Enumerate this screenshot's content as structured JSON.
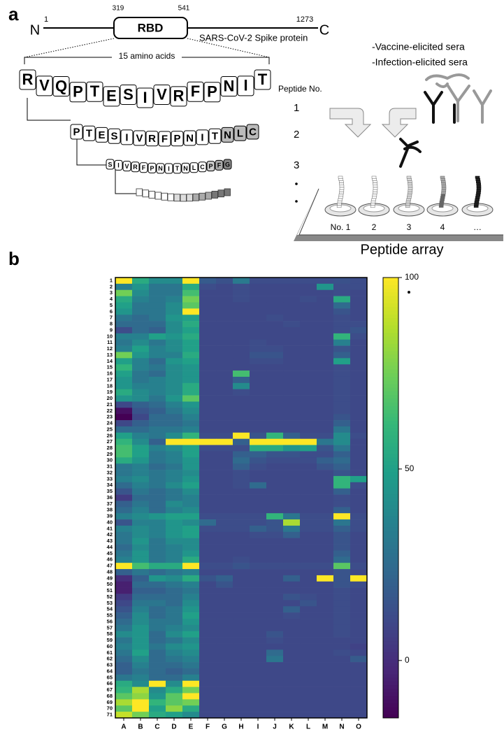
{
  "panel_labels": [
    "a",
    "b"
  ],
  "diagram": {
    "n_term": "N",
    "c_term": "C",
    "start": 1,
    "end": 1273,
    "rbd_start": 319,
    "rbd_end": 541,
    "rbd": "RBD",
    "protein": "SARS-CoV-2 Spike protein",
    "span": "15 amino acids",
    "peptides": [
      [
        "R",
        "V",
        "Q",
        "P",
        "T",
        "E",
        "S",
        "I",
        "V",
        "R",
        "F",
        "P",
        "N",
        "I",
        "T"
      ],
      [
        "P",
        "T",
        "E",
        "S",
        "I",
        "V",
        "R",
        "F",
        "P",
        "N",
        "I",
        "T",
        "N",
        "L",
        "C"
      ],
      [
        "S",
        "I",
        "V",
        "R",
        "F",
        "P",
        "N",
        "I",
        "T",
        "N",
        "L",
        "C",
        "P",
        "F",
        "G"
      ]
    ],
    "peptide_no": "Peptide No.",
    "peptide_numbers": [
      "1",
      "2",
      "3"
    ],
    "sera": [
      "-Vaccine-elicited sera",
      "-Infection-elicited sera"
    ],
    "array_labels": [
      "No. 1",
      "2",
      "3",
      "4",
      "…"
    ],
    "array_title": "Peptide array"
  },
  "chart_data": {
    "type": "heatmap",
    "colormap": "viridis",
    "row_labels": [
      1,
      2,
      3,
      4,
      5,
      6,
      7,
      8,
      9,
      10,
      11,
      12,
      13,
      14,
      15,
      16,
      17,
      18,
      19,
      20,
      21,
      22,
      23,
      24,
      25,
      26,
      27,
      28,
      29,
      30,
      31,
      32,
      33,
      34,
      35,
      36,
      37,
      38,
      39,
      40,
      41,
      42,
      43,
      44,
      45,
      46,
      47,
      48,
      49,
      50,
      51,
      52,
      53,
      54,
      55,
      56,
      57,
      58,
      59,
      60,
      61,
      62,
      63,
      64,
      65,
      66,
      67,
      68,
      69,
      70,
      71
    ],
    "col_labels": [
      "A",
      "B",
      "C",
      "D",
      "E",
      "F",
      "G",
      "H",
      "I",
      "J",
      "K",
      "L",
      "M",
      "N",
      "O"
    ],
    "clim": [
      -15,
      100
    ],
    "cticks": [
      0,
      50,
      100
    ],
    "values": [
      [
        100,
        55,
        40,
        40,
        100,
        18,
        14,
        32,
        12,
        12,
        12,
        12,
        12,
        14,
        12
      ],
      [
        35,
        45,
        30,
        30,
        55,
        12,
        10,
        12,
        10,
        10,
        10,
        10,
        45,
        12,
        12
      ],
      [
        75,
        40,
        30,
        30,
        65,
        10,
        10,
        12,
        10,
        10,
        10,
        10,
        10,
        12,
        10
      ],
      [
        55,
        35,
        30,
        35,
        75,
        10,
        10,
        12,
        10,
        10,
        10,
        12,
        10,
        55,
        10
      ],
      [
        50,
        30,
        30,
        40,
        70,
        10,
        10,
        10,
        10,
        10,
        10,
        10,
        10,
        25,
        10
      ],
      [
        45,
        30,
        30,
        40,
        100,
        10,
        10,
        10,
        10,
        10,
        10,
        10,
        10,
        15,
        10
      ],
      [
        30,
        25,
        30,
        45,
        50,
        10,
        10,
        10,
        10,
        12,
        10,
        10,
        10,
        12,
        10
      ],
      [
        25,
        25,
        25,
        40,
        55,
        10,
        10,
        10,
        10,
        10,
        12,
        10,
        10,
        12,
        12
      ],
      [
        12,
        25,
        20,
        40,
        50,
        10,
        10,
        10,
        10,
        10,
        10,
        10,
        10,
        12,
        15
      ],
      [
        35,
        35,
        50,
        45,
        55,
        10,
        10,
        10,
        10,
        10,
        10,
        10,
        10,
        60,
        12
      ],
      [
        30,
        40,
        30,
        40,
        50,
        10,
        10,
        10,
        12,
        10,
        10,
        10,
        10,
        35,
        10
      ],
      [
        35,
        50,
        35,
        40,
        50,
        10,
        10,
        10,
        12,
        12,
        10,
        10,
        10,
        15,
        10
      ],
      [
        75,
        45,
        35,
        35,
        55,
        10,
        10,
        10,
        15,
        15,
        10,
        10,
        10,
        20,
        10
      ],
      [
        50,
        35,
        25,
        45,
        50,
        10,
        10,
        10,
        12,
        12,
        10,
        10,
        10,
        50,
        10
      ],
      [
        60,
        35,
        30,
        40,
        45,
        10,
        10,
        10,
        10,
        10,
        10,
        10,
        10,
        12,
        10
      ],
      [
        50,
        30,
        25,
        40,
        45,
        10,
        10,
        65,
        10,
        10,
        10,
        10,
        10,
        12,
        10
      ],
      [
        45,
        30,
        35,
        40,
        45,
        10,
        10,
        20,
        10,
        10,
        10,
        10,
        10,
        12,
        10
      ],
      [
        45,
        35,
        35,
        40,
        55,
        10,
        10,
        40,
        10,
        10,
        10,
        10,
        10,
        12,
        10
      ],
      [
        55,
        40,
        35,
        40,
        55,
        10,
        10,
        12,
        10,
        10,
        10,
        10,
        10,
        12,
        10
      ],
      [
        45,
        40,
        30,
        45,
        70,
        10,
        10,
        10,
        10,
        10,
        10,
        10,
        10,
        12,
        10
      ],
      [
        10,
        20,
        25,
        35,
        45,
        10,
        10,
        10,
        10,
        10,
        10,
        10,
        10,
        12,
        10
      ],
      [
        -10,
        15,
        20,
        30,
        40,
        10,
        10,
        10,
        10,
        10,
        10,
        10,
        10,
        12,
        10
      ],
      [
        -15,
        10,
        25,
        25,
        35,
        10,
        10,
        10,
        10,
        10,
        10,
        10,
        10,
        15,
        10
      ],
      [
        10,
        20,
        25,
        25,
        30,
        10,
        10,
        10,
        10,
        10,
        10,
        10,
        10,
        20,
        10
      ],
      [
        25,
        25,
        30,
        30,
        35,
        10,
        10,
        10,
        10,
        10,
        10,
        10,
        10,
        30,
        10
      ],
      [
        50,
        35,
        30,
        40,
        60,
        12,
        12,
        100,
        15,
        60,
        20,
        12,
        12,
        40,
        12
      ],
      [
        60,
        40,
        20,
        100,
        100,
        100,
        100,
        20,
        100,
        100,
        100,
        100,
        30,
        40,
        10
      ],
      [
        65,
        50,
        35,
        40,
        50,
        12,
        12,
        12,
        55,
        55,
        45,
        50,
        15,
        30,
        10
      ],
      [
        65,
        50,
        30,
        35,
        50,
        10,
        10,
        20,
        20,
        15,
        15,
        12,
        12,
        20,
        10
      ],
      [
        55,
        45,
        30,
        35,
        45,
        10,
        10,
        25,
        15,
        12,
        12,
        12,
        20,
        25,
        10
      ],
      [
        30,
        35,
        25,
        30,
        45,
        10,
        10,
        20,
        12,
        10,
        10,
        10,
        15,
        20,
        10
      ],
      [
        30,
        35,
        30,
        35,
        40,
        10,
        10,
        12,
        10,
        10,
        10,
        10,
        10,
        15,
        10
      ],
      [
        35,
        40,
        30,
        35,
        45,
        10,
        10,
        12,
        10,
        10,
        10,
        10,
        10,
        60,
        50
      ],
      [
        25,
        35,
        30,
        40,
        50,
        10,
        10,
        12,
        25,
        10,
        10,
        10,
        10,
        60,
        12
      ],
      [
        15,
        30,
        25,
        30,
        40,
        10,
        10,
        10,
        10,
        10,
        10,
        10,
        10,
        20,
        10
      ],
      [
        5,
        25,
        25,
        30,
        35,
        10,
        10,
        10,
        10,
        10,
        10,
        10,
        10,
        12,
        10
      ],
      [
        20,
        30,
        25,
        40,
        35,
        10,
        10,
        10,
        10,
        10,
        10,
        10,
        10,
        12,
        10
      ],
      [
        25,
        35,
        25,
        35,
        40,
        10,
        10,
        10,
        10,
        10,
        10,
        10,
        10,
        20,
        10
      ],
      [
        35,
        40,
        45,
        50,
        50,
        12,
        12,
        12,
        12,
        60,
        30,
        12,
        12,
        100,
        12
      ],
      [
        15,
        35,
        35,
        45,
        40,
        25,
        12,
        12,
        12,
        15,
        85,
        12,
        12,
        30,
        12
      ],
      [
        35,
        40,
        35,
        45,
        50,
        12,
        12,
        12,
        20,
        15,
        30,
        12,
        12,
        20,
        12
      ],
      [
        30,
        40,
        35,
        45,
        50,
        10,
        10,
        10,
        12,
        12,
        20,
        10,
        10,
        15,
        10
      ],
      [
        30,
        45,
        30,
        40,
        40,
        10,
        10,
        10,
        10,
        10,
        10,
        10,
        10,
        15,
        10
      ],
      [
        25,
        40,
        30,
        35,
        40,
        10,
        10,
        10,
        10,
        10,
        10,
        10,
        10,
        15,
        10
      ],
      [
        30,
        45,
        30,
        35,
        45,
        10,
        10,
        10,
        10,
        10,
        10,
        10,
        10,
        20,
        10
      ],
      [
        35,
        45,
        30,
        35,
        55,
        10,
        10,
        12,
        10,
        10,
        10,
        10,
        10,
        25,
        10
      ],
      [
        100,
        65,
        55,
        55,
        100,
        12,
        12,
        15,
        12,
        12,
        12,
        12,
        12,
        70,
        12
      ],
      [
        20,
        30,
        25,
        30,
        35,
        10,
        10,
        10,
        10,
        10,
        10,
        10,
        10,
        15,
        10
      ],
      [
        0,
        20,
        45,
        40,
        55,
        15,
        20,
        10,
        10,
        10,
        20,
        10,
        100,
        15,
        100
      ],
      [
        -5,
        25,
        25,
        30,
        35,
        10,
        15,
        10,
        10,
        10,
        10,
        10,
        10,
        15,
        12
      ],
      [
        -5,
        20,
        20,
        25,
        30,
        10,
        10,
        10,
        10,
        10,
        10,
        10,
        10,
        12,
        10
      ],
      [
        5,
        25,
        25,
        25,
        35,
        10,
        10,
        10,
        10,
        10,
        15,
        12,
        10,
        12,
        10
      ],
      [
        10,
        30,
        30,
        25,
        40,
        10,
        10,
        10,
        10,
        10,
        10,
        15,
        10,
        12,
        10
      ],
      [
        15,
        35,
        25,
        30,
        45,
        10,
        10,
        10,
        10,
        10,
        20,
        10,
        10,
        12,
        10
      ],
      [
        20,
        40,
        25,
        30,
        50,
        10,
        10,
        10,
        10,
        10,
        12,
        10,
        10,
        12,
        10
      ],
      [
        25,
        40,
        30,
        30,
        45,
        10,
        10,
        10,
        10,
        10,
        10,
        10,
        10,
        12,
        10
      ],
      [
        30,
        45,
        30,
        35,
        40,
        10,
        10,
        10,
        10,
        10,
        10,
        10,
        10,
        12,
        10
      ],
      [
        40,
        45,
        25,
        40,
        50,
        10,
        10,
        10,
        10,
        15,
        10,
        10,
        10,
        12,
        10
      ],
      [
        30,
        45,
        25,
        30,
        40,
        10,
        10,
        10,
        10,
        12,
        10,
        10,
        10,
        10,
        10
      ],
      [
        35,
        45,
        30,
        40,
        45,
        10,
        10,
        10,
        10,
        10,
        10,
        10,
        10,
        10,
        8
      ],
      [
        30,
        50,
        25,
        35,
        40,
        10,
        10,
        10,
        10,
        25,
        10,
        10,
        10,
        12,
        10
      ],
      [
        25,
        40,
        25,
        30,
        35,
        10,
        10,
        10,
        10,
        30,
        10,
        10,
        10,
        10,
        18
      ],
      [
        20,
        35,
        25,
        25,
        30,
        10,
        10,
        10,
        10,
        10,
        10,
        10,
        10,
        10,
        10
      ],
      [
        20,
        30,
        25,
        20,
        25,
        10,
        10,
        10,
        10,
        10,
        10,
        10,
        10,
        10,
        10
      ],
      [
        30,
        35,
        25,
        25,
        35,
        10,
        10,
        10,
        10,
        10,
        10,
        10,
        10,
        10,
        10
      ],
      [
        55,
        40,
        100,
        40,
        100,
        10,
        10,
        10,
        10,
        10,
        10,
        10,
        10,
        10,
        10
      ],
      [
        60,
        85,
        40,
        55,
        75,
        10,
        10,
        10,
        10,
        10,
        10,
        10,
        10,
        10,
        10
      ],
      [
        70,
        80,
        45,
        70,
        100,
        10,
        10,
        10,
        10,
        10,
        10,
        10,
        10,
        10,
        10
      ],
      [
        85,
        100,
        60,
        70,
        75,
        10,
        10,
        10,
        10,
        10,
        10,
        10,
        10,
        10,
        10
      ],
      [
        70,
        100,
        50,
        80,
        55,
        10,
        10,
        10,
        10,
        10,
        10,
        10,
        10,
        10,
        10
      ],
      [
        90,
        75,
        55,
        50,
        40,
        10,
        10,
        10,
        10,
        10,
        10,
        10,
        10,
        10,
        10
      ]
    ]
  }
}
